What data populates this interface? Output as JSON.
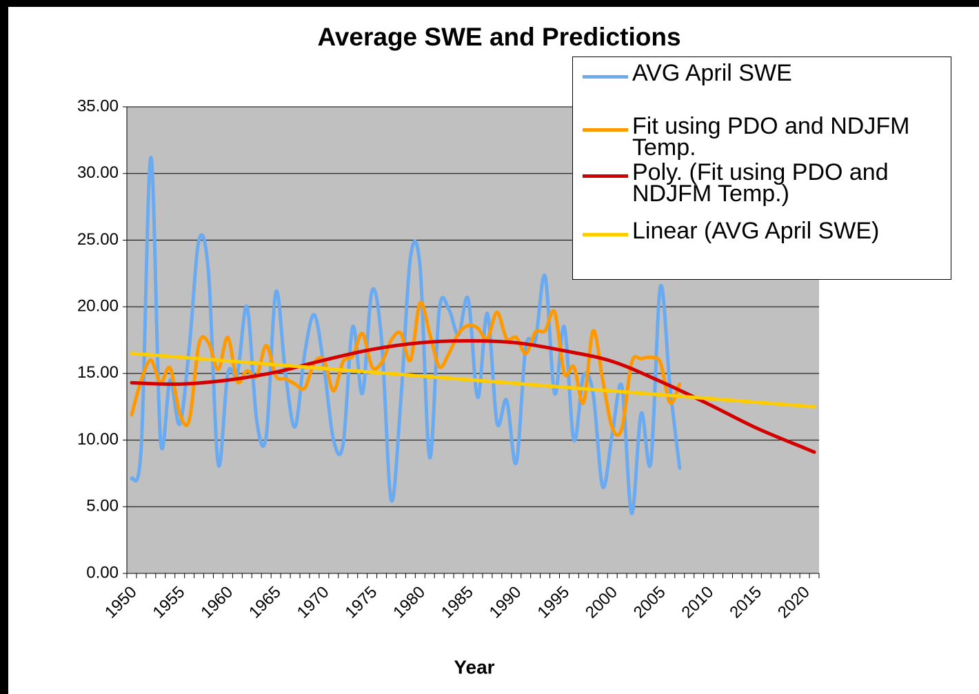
{
  "chart_data": {
    "type": "line",
    "title": "Average SWE and Predictions",
    "x_label": "Year",
    "xlim": [
      1949.5,
      2021.5
    ],
    "xticks": [
      1950,
      1955,
      1960,
      1965,
      1970,
      1975,
      1980,
      1985,
      1990,
      1995,
      2000,
      2005,
      2010,
      2015,
      2020
    ],
    "ylim": [
      0,
      35
    ],
    "yticks": [
      {
        "value": 0,
        "label": "0.00"
      },
      {
        "value": 5,
        "label": "5.00"
      },
      {
        "value": 10,
        "label": "10.00"
      },
      {
        "value": 15,
        "label": "15.00"
      },
      {
        "value": 20,
        "label": "20.00"
      },
      {
        "value": 25,
        "label": "25.00"
      },
      {
        "value": 30,
        "label": "30.00"
      },
      {
        "value": 35,
        "label": "35.00"
      }
    ],
    "grid": true,
    "legend": "top-right",
    "background": "#c0c0c0",
    "series": [
      {
        "name": "AVG April SWE",
        "color": "#6aaaf0",
        "x": [
          1950,
          1951,
          1952,
          1953,
          1954,
          1955,
          1956,
          1957,
          1958,
          1959,
          1960,
          1961,
          1962,
          1963,
          1964,
          1965,
          1966,
          1967,
          1968,
          1969,
          1970,
          1971,
          1972,
          1973,
          1974,
          1975,
          1976,
          1977,
          1978,
          1979,
          1980,
          1981,
          1982,
          1983,
          1984,
          1985,
          1986,
          1987,
          1988,
          1989,
          1990,
          1991,
          1992,
          1993,
          1994,
          1995,
          1996,
          1997,
          1998,
          1999,
          2000,
          2001,
          2002,
          2003,
          2004,
          2005,
          2006,
          2007
        ],
        "values": [
          7.1,
          9.5,
          31.2,
          10.0,
          14.5,
          11.2,
          17.0,
          25.0,
          22.5,
          8.2,
          15.0,
          15.0,
          20.0,
          11.5,
          10.3,
          21.1,
          15.0,
          11.0,
          16.5,
          19.4,
          15.5,
          10.0,
          9.7,
          18.5,
          13.5,
          21.2,
          17.5,
          5.5,
          13.0,
          23.7,
          23.0,
          8.7,
          19.8,
          19.8,
          17.9,
          20.6,
          13.2,
          19.5,
          11.3,
          13.0,
          8.3,
          17.0,
          17.5,
          22.3,
          13.5,
          18.5,
          10.0,
          14.8,
          13.5,
          6.5,
          10.5,
          14.0,
          4.5,
          12.0,
          8.3,
          21.5,
          14.0,
          7.9
        ]
      },
      {
        "name": "Fit using PDO and NDJFM Temp.",
        "color": "#ff9900",
        "x": [
          1950,
          1951,
          1952,
          1953,
          1954,
          1955,
          1956,
          1957,
          1958,
          1959,
          1960,
          1961,
          1962,
          1963,
          1964,
          1965,
          1966,
          1967,
          1968,
          1969,
          1970,
          1971,
          1972,
          1973,
          1974,
          1975,
          1976,
          1977,
          1978,
          1979,
          1980,
          1981,
          1982,
          1983,
          1984,
          1985,
          1986,
          1987,
          1988,
          1989,
          1990,
          1991,
          1992,
          1993,
          1994,
          1995,
          1996,
          1997,
          1998,
          1999,
          2000,
          2001,
          2002,
          2003,
          2004,
          2005,
          2006,
          2007
        ],
        "values": [
          11.9,
          14.5,
          16.0,
          14.3,
          15.4,
          12.0,
          11.5,
          17.2,
          17.3,
          15.3,
          17.7,
          14.4,
          15.2,
          14.8,
          17.1,
          14.8,
          14.6,
          14.2,
          13.9,
          15.8,
          16.0,
          13.7,
          15.9,
          16.3,
          18.0,
          15.5,
          15.8,
          17.5,
          18.0,
          16.0,
          20.3,
          18.0,
          15.5,
          16.5,
          18.0,
          18.6,
          18.4,
          17.6,
          19.6,
          17.6,
          17.7,
          16.5,
          18.1,
          18.2,
          19.6,
          15.0,
          15.5,
          12.8,
          18.2,
          14.5,
          10.9,
          10.9,
          15.8,
          16.1,
          16.2,
          15.8,
          12.8,
          14.2
        ]
      },
      {
        "name": "Poly. (Fit using PDO and NDJFM Temp.)",
        "color": "#d40000",
        "x": [
          1950,
          1955,
          1960,
          1965,
          1970,
          1975,
          1980,
          1985,
          1990,
          1995,
          2000,
          2005,
          2010,
          2015,
          2020,
          2021
        ],
        "values": [
          14.3,
          14.2,
          14.5,
          15.1,
          16.0,
          16.8,
          17.3,
          17.45,
          17.3,
          16.7,
          15.9,
          14.4,
          12.7,
          10.9,
          9.4,
          9.1
        ]
      },
      {
        "name": "Linear (AVG April SWE)",
        "color": "#ffcc00",
        "x": [
          1950,
          2021
        ],
        "values": [
          16.5,
          12.5
        ]
      }
    ]
  }
}
